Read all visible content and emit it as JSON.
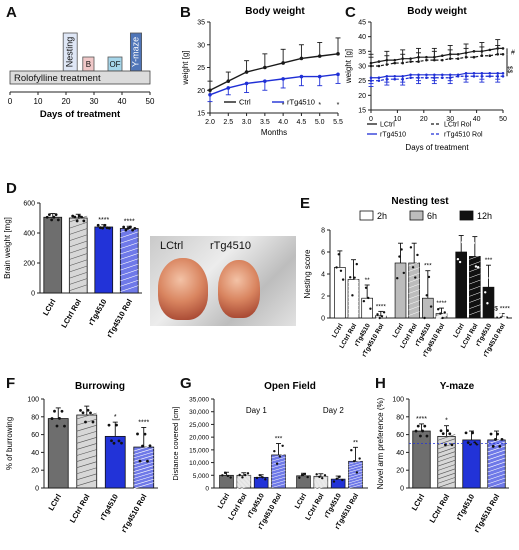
{
  "panel_labels": {
    "A": "A",
    "B": "B",
    "C": "C",
    "D": "D",
    "E": "E",
    "F": "F",
    "G": "G",
    "H": "H"
  },
  "timeline": {
    "treatment_label": "Rolofylline treatment",
    "xlabel": "Days of treatment",
    "ticks": [
      "0",
      "10",
      "20",
      "30",
      "40",
      "50"
    ],
    "blocks": [
      {
        "label": "Nesting",
        "start": 19,
        "end": 24,
        "color": "#dfe7f6",
        "vertical": true
      },
      {
        "label": "B",
        "start": 26,
        "end": 30,
        "color": "#f0c8c8",
        "vertical": false
      },
      {
        "label": "OF",
        "start": 35,
        "end": 40,
        "color": "#a6d6ea",
        "vertical": false
      },
      {
        "label": "Y-maze",
        "start": 43,
        "end": 47,
        "color": "#4f75b8",
        "vertical": true
      }
    ]
  },
  "colors": {
    "ctrl": "#1a1a1a",
    "tg": "#1f2fd6",
    "ctrl_bar": "#6e6e6e",
    "tg_bar": "#2233d8"
  },
  "chart_data": [
    {
      "id": "B",
      "type": "line",
      "title": "Body weight",
      "xlabel": "Months",
      "ylabel": "weight [g]",
      "xlim": [
        2.0,
        5.5
      ],
      "ylim": [
        15,
        35
      ],
      "xticks": [
        "2.0",
        "2.5",
        "3.0",
        "3.5",
        "4.0",
        "4.5",
        "5.0",
        "5.5"
      ],
      "yticks": [
        "15",
        "20",
        "25",
        "30",
        "35"
      ],
      "x": [
        2.0,
        2.5,
        3.0,
        3.5,
        4.0,
        4.5,
        5.0,
        5.5
      ],
      "series": [
        {
          "name": "Ctrl",
          "values": [
            20,
            22,
            24,
            25,
            26,
            27,
            27.5,
            28
          ],
          "err": [
            2,
            2,
            2.5,
            3,
            3,
            3,
            3,
            3.5
          ]
        },
        {
          "name": "rTg4510",
          "values": [
            19,
            20.5,
            21.5,
            22,
            22.5,
            23,
            23,
            23.5
          ],
          "err": [
            1.5,
            1.5,
            2,
            2,
            2,
            2,
            2,
            2
          ]
        }
      ],
      "legend": "bottom",
      "annotations": [
        "*",
        "*",
        "*",
        "*"
      ]
    },
    {
      "id": "C",
      "type": "line",
      "title": "Body weight",
      "xlabel": "Days of treatment",
      "ylabel": "weight [g]",
      "xlim": [
        0,
        50
      ],
      "ylim": [
        15,
        45
      ],
      "xticks": [
        "0",
        "10",
        "20",
        "30",
        "40",
        "50"
      ],
      "yticks": [
        "15",
        "20",
        "25",
        "30",
        "35",
        "40",
        "45"
      ],
      "x": [
        0,
        3,
        6,
        9,
        12,
        15,
        18,
        21,
        24,
        27,
        30,
        33,
        36,
        39,
        42,
        45,
        48,
        50
      ],
      "series": [
        {
          "name": "LCtrl",
          "values": [
            31,
            31.5,
            32,
            32,
            32.5,
            32.5,
            33,
            33,
            33,
            33.5,
            34,
            34,
            34.5,
            35,
            35,
            35.5,
            36,
            36
          ]
        },
        {
          "name": "LCtrl Rol",
          "values": [
            30,
            30,
            30.5,
            31,
            31,
            31.5,
            31.5,
            32,
            32,
            32,
            32.5,
            32.5,
            33,
            33,
            33.5,
            33.5,
            34,
            34
          ]
        },
        {
          "name": "rTg4510",
          "values": [
            26,
            26,
            26.5,
            26.5,
            26.5,
            27,
            27,
            27,
            27,
            27,
            27,
            27,
            27.5,
            27.5,
            27.5,
            27.5,
            27.5,
            27.5
          ]
        },
        {
          "name": "rTg4510 Rol",
          "values": [
            25,
            25,
            25.5,
            25.5,
            25.5,
            26,
            26,
            26,
            26,
            26,
            26,
            26.5,
            26.5,
            26.5,
            26.5,
            26.5,
            26.5,
            26.5
          ]
        }
      ],
      "legend": "bottom",
      "annotations": [
        "#",
        "$$"
      ]
    },
    {
      "id": "D",
      "type": "bar",
      "title": "",
      "ylabel": "Brain weight [mg]",
      "ylim": [
        0,
        600
      ],
      "yticks": [
        "0",
        "200",
        "400",
        "600"
      ],
      "categories": [
        "LCtrl",
        "LCtrl Rol",
        "rTg4510",
        "rTg4510 Rol"
      ],
      "values": [
        505,
        500,
        440,
        430
      ],
      "err": [
        25,
        25,
        15,
        15
      ],
      "annotations": [
        "",
        "",
        "****",
        "****"
      ],
      "photo_labels": [
        "LCtrl",
        "rTg4510"
      ]
    },
    {
      "id": "E",
      "type": "bar",
      "title": "Nesting test",
      "ylabel": "Nesting score",
      "ylim": [
        0,
        8
      ],
      "yticks": [
        "0",
        "2",
        "4",
        "6",
        "8"
      ],
      "groups": [
        "2h",
        "6h",
        "12h"
      ],
      "categories": [
        "LCtrl",
        "LCtrl Rol",
        "rTg4510",
        "rTg4510 Rol"
      ],
      "series": [
        {
          "name": "2h",
          "values": [
            4.6,
            3.5,
            1.8,
            0.2
          ],
          "err": [
            1.5,
            1.8,
            1.2,
            0.4
          ]
        },
        {
          "name": "6h",
          "values": [
            5.0,
            5.0,
            1.8,
            0.4
          ],
          "err": [
            1.8,
            1.8,
            2.5,
            0.5
          ]
        },
        {
          "name": "12h",
          "values": [
            6.0,
            5.6,
            2.8,
            0.1
          ],
          "err": [
            1.5,
            1.8,
            2.0,
            0.3
          ]
        }
      ],
      "annotations": [
        [
          "",
          "",
          "**",
          "****"
        ],
        [
          "",
          "",
          "***",
          "****"
        ],
        [
          "",
          "",
          "***",
          "$ ****"
        ]
      ],
      "legend": "top"
    },
    {
      "id": "F",
      "type": "bar",
      "title": "Burrowing",
      "ylabel": "% of burrowing",
      "ylim": [
        0,
        100
      ],
      "yticks": [
        "0",
        "20",
        "40",
        "60",
        "80",
        "100"
      ],
      "categories": [
        "LCtrl",
        "LCtrl Rol",
        "rTg4510",
        "rTg4510 Rol"
      ],
      "values": [
        78,
        82,
        58,
        46
      ],
      "err": [
        12,
        10,
        16,
        22
      ],
      "annotations": [
        "",
        "",
        "*",
        "****"
      ]
    },
    {
      "id": "G",
      "type": "bar",
      "title": "Open Field",
      "ylabel": "Distance covered [cm]",
      "ylim": [
        0,
        35000
      ],
      "yticks": [
        "0",
        "5,000",
        "10,000",
        "15,000",
        "20,000",
        "25,000",
        "30,000",
        "35,000"
      ],
      "groups": [
        "Day 1",
        "Day 2"
      ],
      "categories": [
        "LCtrl",
        "LCtrl Rol",
        "rTg4510",
        "rTg4510 Rol"
      ],
      "series": [
        {
          "name": "Day 1",
          "values": [
            5000,
            5000,
            4200,
            13000
          ],
          "err": [
            1200,
            1000,
            1000,
            4500
          ]
        },
        {
          "name": "Day 2",
          "values": [
            4800,
            4600,
            3500,
            10500
          ],
          "err": [
            1000,
            1000,
            1200,
            5500
          ]
        }
      ],
      "annotations": [
        [
          "",
          "",
          "",
          "***"
        ],
        [
          "",
          "",
          "",
          "**"
        ]
      ]
    },
    {
      "id": "H",
      "type": "bar",
      "title": "Y-maze",
      "ylabel": "Novel arm preference (%)",
      "ylim": [
        0,
        100
      ],
      "yticks": [
        "0",
        "20",
        "40",
        "60",
        "80",
        "100"
      ],
      "categories": [
        "LCtrl",
        "LCtrl Rol",
        "rTg4510",
        "rTg4510 Rol"
      ],
      "values": [
        64,
        58,
        54,
        54
      ],
      "err": [
        8,
        12,
        10,
        10
      ],
      "annotations": [
        "****",
        "*",
        "",
        ""
      ]
    }
  ]
}
